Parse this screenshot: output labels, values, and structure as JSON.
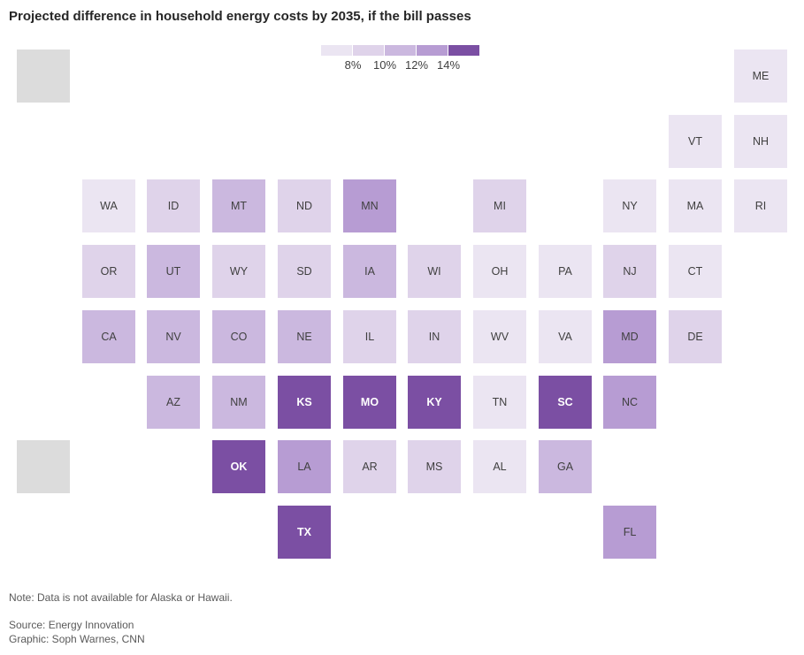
{
  "title": "Projected difference in household energy costs by 2035, if the bill passes",
  "legend": {
    "colors": [
      "#ebe5f2",
      "#dfd3ea",
      "#cbb8df",
      "#b79cd3",
      "#7b4fa3"
    ],
    "ticks": [
      "8%",
      "10%",
      "12%",
      "14%"
    ]
  },
  "states": [
    {
      "abbr": "ME",
      "bin": 0
    },
    {
      "abbr": "VT",
      "bin": 0
    },
    {
      "abbr": "NH",
      "bin": 0
    },
    {
      "abbr": "WA",
      "bin": 0
    },
    {
      "abbr": "ID",
      "bin": 1
    },
    {
      "abbr": "MT",
      "bin": 2
    },
    {
      "abbr": "ND",
      "bin": 1
    },
    {
      "abbr": "MN",
      "bin": 3
    },
    {
      "abbr": "MI",
      "bin": 1
    },
    {
      "abbr": "NY",
      "bin": 0
    },
    {
      "abbr": "MA",
      "bin": 0
    },
    {
      "abbr": "RI",
      "bin": 0
    },
    {
      "abbr": "OR",
      "bin": 1
    },
    {
      "abbr": "UT",
      "bin": 2
    },
    {
      "abbr": "WY",
      "bin": 1
    },
    {
      "abbr": "SD",
      "bin": 1
    },
    {
      "abbr": "IA",
      "bin": 2
    },
    {
      "abbr": "WI",
      "bin": 1
    },
    {
      "abbr": "OH",
      "bin": 0
    },
    {
      "abbr": "PA",
      "bin": 0
    },
    {
      "abbr": "NJ",
      "bin": 1
    },
    {
      "abbr": "CT",
      "bin": 0
    },
    {
      "abbr": "CA",
      "bin": 2
    },
    {
      "abbr": "NV",
      "bin": 2
    },
    {
      "abbr": "CO",
      "bin": 2
    },
    {
      "abbr": "NE",
      "bin": 2
    },
    {
      "abbr": "IL",
      "bin": 1
    },
    {
      "abbr": "IN",
      "bin": 1
    },
    {
      "abbr": "WV",
      "bin": 0
    },
    {
      "abbr": "VA",
      "bin": 0
    },
    {
      "abbr": "MD",
      "bin": 3
    },
    {
      "abbr": "DE",
      "bin": 1
    },
    {
      "abbr": "AZ",
      "bin": 2
    },
    {
      "abbr": "NM",
      "bin": 2
    },
    {
      "abbr": "KS",
      "bin": 4
    },
    {
      "abbr": "MO",
      "bin": 4
    },
    {
      "abbr": "KY",
      "bin": 4
    },
    {
      "abbr": "TN",
      "bin": 0
    },
    {
      "abbr": "SC",
      "bin": 4
    },
    {
      "abbr": "NC",
      "bin": 3
    },
    {
      "abbr": "OK",
      "bin": 4
    },
    {
      "abbr": "LA",
      "bin": 3
    },
    {
      "abbr": "AR",
      "bin": 1
    },
    {
      "abbr": "MS",
      "bin": 1
    },
    {
      "abbr": "AL",
      "bin": 0
    },
    {
      "abbr": "GA",
      "bin": 2
    },
    {
      "abbr": "TX",
      "bin": 4
    },
    {
      "abbr": "FL",
      "bin": 3
    }
  ],
  "unavailable": [
    "AK",
    "HI"
  ],
  "notes": {
    "note": "Note: Data is not available for Alaska or Hawaii.",
    "source": "Source: Energy Innovation",
    "graphic": "Graphic: Soph Warnes, CNN"
  }
}
